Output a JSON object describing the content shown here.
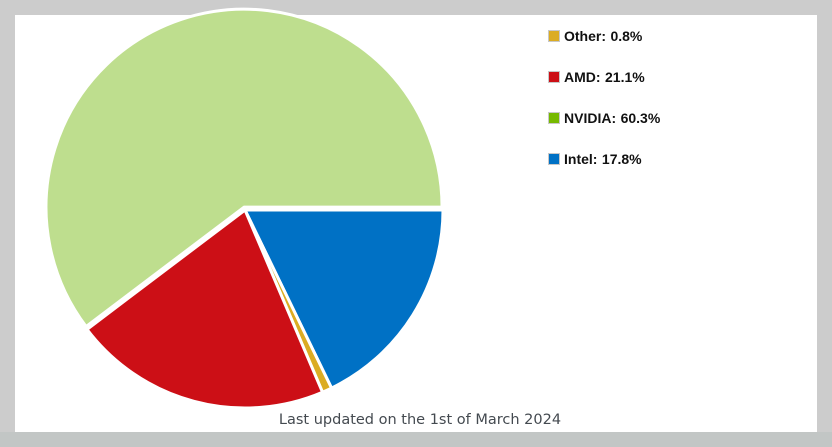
{
  "chart_data": {
    "type": "pie",
    "title": "",
    "categories": [
      "Other",
      "AMD",
      "NVIDIA",
      "Intel"
    ],
    "values": [
      0.8,
      21.1,
      60.3,
      17.8
    ],
    "unit": "%",
    "colors": {
      "Other": "#dbac23",
      "AMD": "#cc0f16",
      "NVIDIA": "#76b900",
      "Intel": "#0071c5"
    },
    "slice_fill_colors": {
      "Other": "#dbac23",
      "AMD": "#cc0f16",
      "NVIDIA": "#bede8e",
      "Intel": "#0071c5"
    },
    "legend_position": "right",
    "start_angle_deg": 90,
    "direction": "clockwise",
    "exploded": "NVIDIA"
  },
  "legend": {
    "items": [
      {
        "label": "Other:",
        "value": "0.8%",
        "color": "#dbac23"
      },
      {
        "label": "AMD:",
        "value": "21.1%",
        "color": "#cc0f16"
      },
      {
        "label": "NVIDIA:",
        "value": "60.3%",
        "color": "#76b900"
      },
      {
        "label": "Intel:",
        "value": "17.8%",
        "color": "#0071c5"
      }
    ]
  },
  "footer": {
    "text": "Last updated on the 1st of March 2024"
  },
  "colors": {
    "page_background": "#cccccc",
    "panel_background": "#ffffff",
    "footer_text": "#444a50"
  }
}
